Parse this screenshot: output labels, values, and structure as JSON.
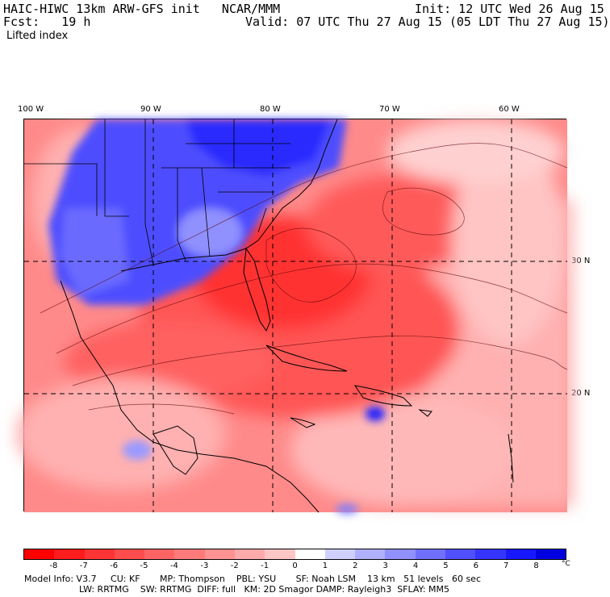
{
  "header": {
    "model_line": "HAIC-HIWC 13km ARW-GFS init   NCAR/MMM",
    "init_line": "Init: 12 UTC Wed 26 Aug 15",
    "fcst_line": "Fcst:   19 h",
    "valid_line": "Valid: 07 UTC Thu 27 Aug 15 (05 LDT Thu 27 Aug 15)",
    "field": "Lifted index"
  },
  "axes": {
    "lon_labels": [
      "100 W",
      "90 W",
      "80 W",
      "70 W",
      "60 W"
    ],
    "lat_labels": [
      "30 N",
      "20 N"
    ]
  },
  "colorbar": {
    "tick_labels": [
      "-8",
      "-7",
      "-6",
      "-5",
      "-4",
      "-3",
      "-2",
      "-1",
      "0",
      "1",
      "2",
      "3",
      "4",
      "5",
      "6",
      "7",
      "8"
    ],
    "unit": "°C",
    "colors": [
      "#ff0000",
      "#ff1c1c",
      "#ff3535",
      "#ff4d4d",
      "#ff6464",
      "#ff7b7b",
      "#ff9292",
      "#ffaaaa",
      "#ffc6c6",
      "#ffffff",
      "#d0d0ff",
      "#b0b0ff",
      "#9090ff",
      "#7070ff",
      "#5050ff",
      "#3535ff",
      "#1818ff",
      "#0000e0"
    ]
  },
  "model_info": {
    "line1": "Model Info: V3.7     CU: KF       MP: Thompson    PBL: YSU       SF: Noah LSM    13 km   51 levels   60 sec",
    "line2": "LW: RRTMG    SW: RRTMG  DIFF: full   KM: 2D Smagor DAMP: Rayleigh3  SFLAY: MM5"
  }
}
